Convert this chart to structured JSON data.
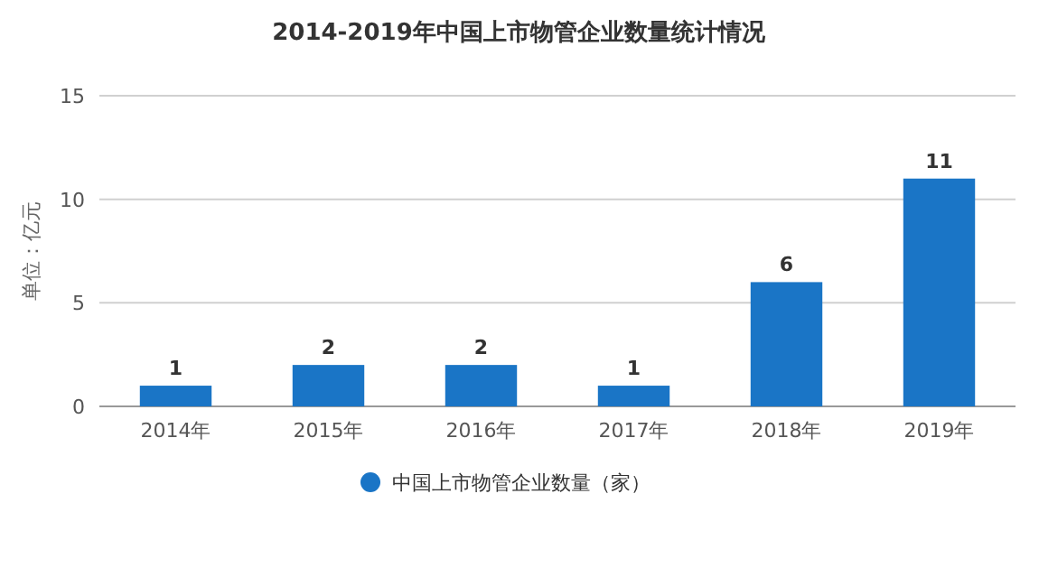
{
  "chart_data": {
    "type": "bar",
    "title": "2014-2019年中国上市物管企业数量统计情况",
    "ylabel": "单位：亿元",
    "categories": [
      "2014年",
      "2015年",
      "2016年",
      "2017年",
      "2018年",
      "2019年"
    ],
    "series": [
      {
        "name": "中国上市物管企业数量（家）",
        "color": "#1a75c6",
        "values": [
          1,
          2,
          2,
          1,
          6,
          11
        ]
      }
    ],
    "ylim": [
      0,
      15
    ],
    "yticks": [
      0,
      5,
      10,
      15
    ],
    "grid": "y",
    "legend": "bottom",
    "data_labels": true
  }
}
